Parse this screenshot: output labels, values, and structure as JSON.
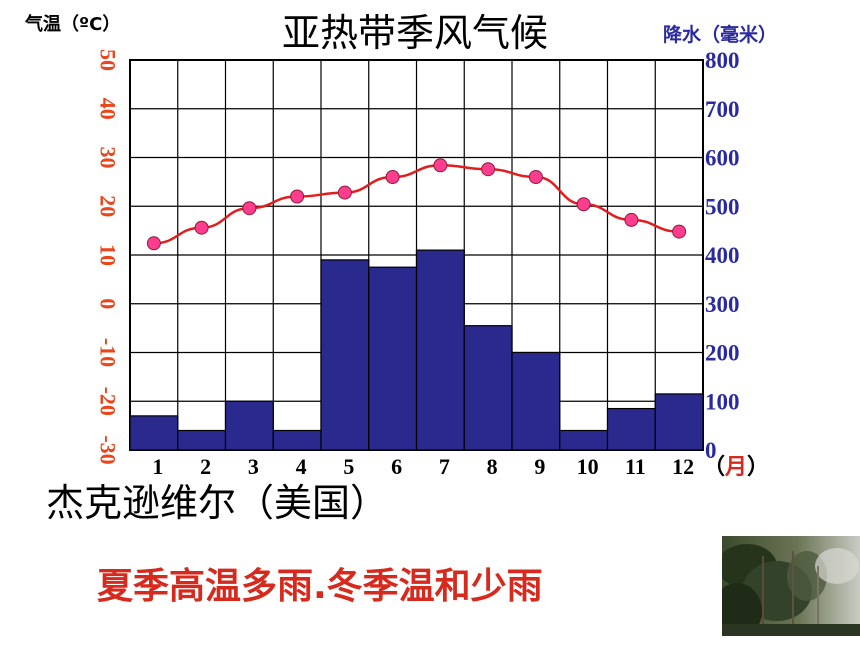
{
  "chart_data": {
    "type": "bar+line",
    "title": "亚热带季风气候",
    "subtitle": "杰克逊维尔（美国）",
    "conclusion": "夏季高温多雨.冬季温和少雨",
    "temp_axis_label": "气温（ºC）",
    "precip_axis_label": "降水（毫米）",
    "month_unit_prefix": "（",
    "month_unit": "月",
    "month_unit_suffix": "）",
    "categories": [
      "1",
      "2",
      "3",
      "4",
      "5",
      "6",
      "7",
      "8",
      "9",
      "10",
      "11",
      "12"
    ],
    "temp_ticks": [
      "50",
      "40",
      "30",
      "20",
      "10",
      "0",
      "-10",
      "-20",
      "-30"
    ],
    "precip_ticks": [
      "800",
      "700",
      "600",
      "500",
      "400",
      "300",
      "200",
      "100",
      "0"
    ],
    "precip_ylim": [
      0,
      800
    ],
    "temp_ylim": [
      -40,
      60
    ],
    "series": [
      {
        "name": "降水",
        "type": "bar",
        "axis": "right",
        "color": "#2a2a8e",
        "values": [
          70,
          40,
          100,
          40,
          390,
          375,
          410,
          255,
          200,
          40,
          85,
          115
        ]
      },
      {
        "name": "气温",
        "type": "line",
        "axis": "left",
        "color": "#e11d1d",
        "marker_color": "#ff3d8e",
        "values": [
          13,
          17,
          22,
          25,
          26,
          30,
          33,
          32,
          30,
          23,
          19,
          16
        ]
      }
    ],
    "grid": true
  }
}
